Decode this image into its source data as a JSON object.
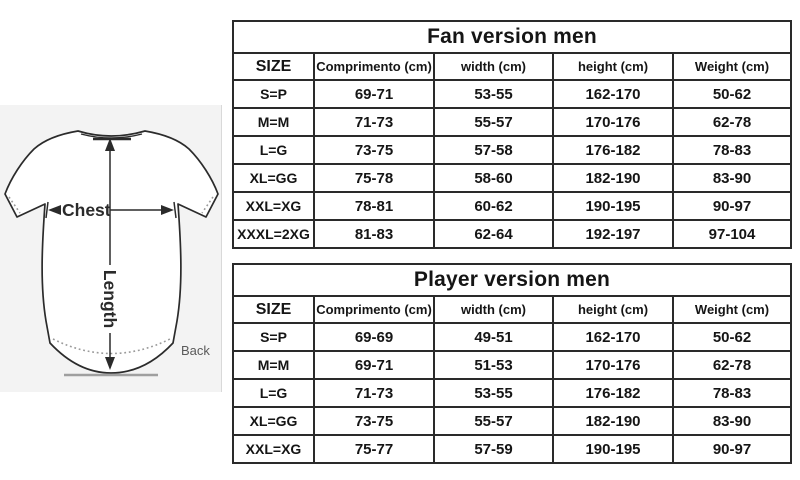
{
  "chart_data": [
    {
      "type": "table",
      "title": "Fan version men",
      "columns": [
        "SIZE",
        "Comprimento (cm)",
        "width (cm)",
        "height (cm)",
        "Weight (cm)"
      ],
      "rows": [
        [
          "S=P",
          "69-71",
          "53-55",
          "162-170",
          "50-62"
        ],
        [
          "M=M",
          "71-73",
          "55-57",
          "170-176",
          "62-78"
        ],
        [
          "L=G",
          "73-75",
          "57-58",
          "176-182",
          "78-83"
        ],
        [
          "XL=GG",
          "75-78",
          "58-60",
          "182-190",
          "83-90"
        ],
        [
          "XXL=XG",
          "78-81",
          "60-62",
          "190-195",
          "90-97"
        ],
        [
          "XXXL=2XG",
          "81-83",
          "62-64",
          "192-197",
          "97-104"
        ]
      ]
    },
    {
      "type": "table",
      "title": "Player version men",
      "columns": [
        "SIZE",
        "Comprimento (cm)",
        "width (cm)",
        "height (cm)",
        "Weight (cm)"
      ],
      "rows": [
        [
          "S=P",
          "69-69",
          "49-51",
          "162-170",
          "50-62"
        ],
        [
          "M=M",
          "69-71",
          "51-53",
          "170-176",
          "62-78"
        ],
        [
          "L=G",
          "71-73",
          "53-55",
          "176-182",
          "78-83"
        ],
        [
          "XL=GG",
          "73-75",
          "55-57",
          "182-190",
          "83-90"
        ],
        [
          "XXL=XG",
          "75-77",
          "57-59",
          "190-195",
          "90-97"
        ]
      ]
    }
  ],
  "figure": {
    "chest_label": "Chest",
    "length_label": "Length",
    "back_label": "Back"
  },
  "colors": {
    "table_border": "#2a2a2a",
    "text": "#151515",
    "figure_background": "#f3f3f3",
    "shirt_outline": "#2b2b2b",
    "stitch_dots": "#9a9a9a",
    "back_label": "#5a5a5a"
  }
}
